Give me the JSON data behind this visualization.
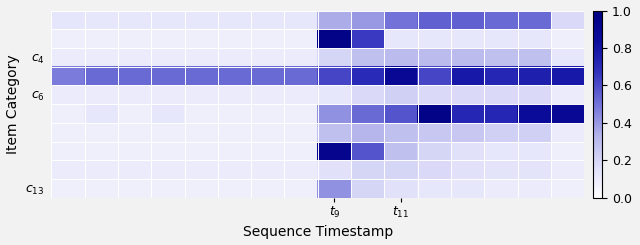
{
  "xlabel": "Sequence Timestamp",
  "ylabel": "Item Category",
  "colormap": "Blues",
  "vmin": 0.0,
  "vmax": 1.0,
  "num_rows": 10,
  "num_cols": 16,
  "ytick_positions": [
    2,
    4,
    9
  ],
  "ytick_labels": [
    "$c_4$",
    "$c_6$",
    "$c_{13}$"
  ],
  "xtick_positions": [
    8,
    10
  ],
  "xtick_labels": [
    "$t_9$",
    "$t_{11}$"
  ],
  "colorbar_ticks": [
    0.0,
    0.2,
    0.4,
    0.6,
    0.8,
    1.0
  ],
  "heatmap_data": [
    [
      0.13,
      0.12,
      0.12,
      0.12,
      0.12,
      0.12,
      0.12,
      0.12,
      0.35,
      0.4,
      0.5,
      0.55,
      0.55,
      0.52,
      0.52,
      0.18
    ],
    [
      0.08,
      0.08,
      0.08,
      0.08,
      0.08,
      0.08,
      0.08,
      0.08,
      0.95,
      0.65,
      0.12,
      0.12,
      0.12,
      0.12,
      0.12,
      0.08
    ],
    [
      0.1,
      0.1,
      0.1,
      0.1,
      0.1,
      0.1,
      0.1,
      0.1,
      0.2,
      0.28,
      0.3,
      0.3,
      0.3,
      0.28,
      0.28,
      0.12
    ],
    [
      0.48,
      0.52,
      0.52,
      0.52,
      0.52,
      0.52,
      0.52,
      0.52,
      0.62,
      0.7,
      0.88,
      0.62,
      0.78,
      0.72,
      0.75,
      0.78
    ],
    [
      0.1,
      0.1,
      0.1,
      0.1,
      0.1,
      0.1,
      0.1,
      0.1,
      0.12,
      0.18,
      0.22,
      0.18,
      0.18,
      0.18,
      0.18,
      0.1
    ],
    [
      0.08,
      0.12,
      0.08,
      0.12,
      0.08,
      0.08,
      0.08,
      0.08,
      0.42,
      0.52,
      0.58,
      0.95,
      0.72,
      0.72,
      0.85,
      0.88
    ],
    [
      0.08,
      0.08,
      0.08,
      0.08,
      0.08,
      0.08,
      0.08,
      0.08,
      0.28,
      0.32,
      0.28,
      0.25,
      0.25,
      0.22,
      0.22,
      0.1
    ],
    [
      0.08,
      0.08,
      0.08,
      0.08,
      0.08,
      0.08,
      0.08,
      0.08,
      0.92,
      0.58,
      0.28,
      0.2,
      0.15,
      0.12,
      0.12,
      0.08
    ],
    [
      0.1,
      0.1,
      0.1,
      0.1,
      0.1,
      0.1,
      0.1,
      0.1,
      0.15,
      0.2,
      0.2,
      0.18,
      0.15,
      0.14,
      0.14,
      0.1
    ],
    [
      0.08,
      0.08,
      0.08,
      0.08,
      0.08,
      0.08,
      0.08,
      0.08,
      0.42,
      0.2,
      0.15,
      0.12,
      0.12,
      0.1,
      0.1,
      0.08
    ]
  ],
  "figure_facecolor": "#f2f2f2",
  "axes_facecolor": "#f2f2f2",
  "grid_color": "white",
  "grid_linewidth": 0.7,
  "label_fontsize": 10,
  "tick_fontsize": 9
}
